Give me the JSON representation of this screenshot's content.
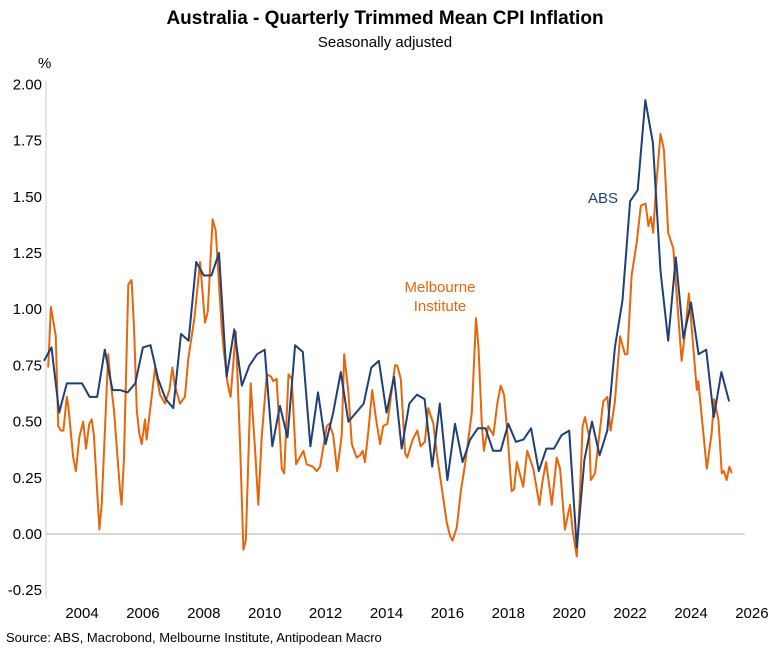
{
  "chart_data": {
    "type": "line",
    "title": "Australia - Quarterly Trimmed Mean CPI Inflation",
    "subtitle": "Seasonally adjusted",
    "ylabel": "%",
    "xlabel": "",
    "source": "Source: ABS, Macrobond, Melbourne Institute, Antipodean Macro",
    "xlim": [
      2002.9,
      2026.2
    ],
    "ylim": [
      -0.25,
      2.0
    ],
    "x_ticks": [
      "2004",
      "2006",
      "2008",
      "2010",
      "2012",
      "2014",
      "2016",
      "2018",
      "2020",
      "2022",
      "2024",
      "2026"
    ],
    "y_ticks": [
      "2.00",
      "1.75",
      "1.50",
      "1.25",
      "1.00",
      "0.75",
      "0.50",
      "0.25",
      "0.00",
      "-0.25"
    ],
    "grid": false,
    "zero_line": true,
    "series": [
      {
        "name": "ABS",
        "color": "#1f3f77",
        "frequency": "quarterly",
        "start": "2002 Q4",
        "values": [
          0.77,
          0.83,
          0.54,
          0.67,
          0.67,
          0.67,
          0.61,
          0.61,
          0.82,
          0.64,
          0.64,
          0.63,
          0.67,
          0.83,
          0.84,
          0.69,
          0.6,
          0.56,
          0.89,
          0.86,
          1.21,
          1.15,
          1.15,
          1.25,
          0.7,
          0.91,
          0.66,
          0.75,
          0.8,
          0.82,
          0.39,
          0.57,
          0.43,
          0.84,
          0.81,
          0.39,
          0.63,
          0.4,
          0.54,
          0.72,
          0.5,
          0.54,
          0.58,
          0.74,
          0.77,
          0.54,
          0.7,
          0.38,
          0.58,
          0.62,
          0.6,
          0.3,
          0.58,
          0.24,
          0.49,
          0.32,
          0.42,
          0.47,
          0.47,
          0.37,
          0.37,
          0.49,
          0.41,
          0.42,
          0.47,
          0.28,
          0.38,
          0.38,
          0.44,
          0.46,
          -0.06,
          0.33,
          0.5,
          0.35,
          0.46,
          0.83,
          1.04,
          1.48,
          1.53,
          1.93,
          1.74,
          1.17,
          0.86,
          1.23,
          0.87,
          1.03,
          0.8,
          0.82,
          0.52,
          0.72,
          0.59
        ]
      },
      {
        "name": "Melbourne\nInstitute",
        "label_lines": [
          "Melbourne",
          "Institute"
        ],
        "color": "#e8650a",
        "frequency": "monthly",
        "points": [
          [
            2002.89,
            0.74
          ],
          [
            2002.98,
            1.01
          ],
          [
            2003.14,
            0.88
          ],
          [
            2003.22,
            0.48
          ],
          [
            2003.31,
            0.46
          ],
          [
            2003.39,
            0.46
          ],
          [
            2003.5,
            0.61
          ],
          [
            2003.55,
            0.57
          ],
          [
            2003.71,
            0.34
          ],
          [
            2003.8,
            0.28
          ],
          [
            2003.91,
            0.43
          ],
          [
            2004.04,
            0.5
          ],
          [
            2004.13,
            0.38
          ],
          [
            2004.24,
            0.49
          ],
          [
            2004.32,
            0.51
          ],
          [
            2004.39,
            0.44
          ],
          [
            2004.57,
            0.02
          ],
          [
            2004.65,
            0.14
          ],
          [
            2004.86,
            0.8
          ],
          [
            2004.94,
            0.68
          ],
          [
            2005.05,
            0.55
          ],
          [
            2005.25,
            0.19
          ],
          [
            2005.3,
            0.13
          ],
          [
            2005.38,
            0.34
          ],
          [
            2005.52,
            1.11
          ],
          [
            2005.63,
            1.13
          ],
          [
            2005.71,
            0.91
          ],
          [
            2005.8,
            0.55
          ],
          [
            2005.88,
            0.45
          ],
          [
            2005.96,
            0.4
          ],
          [
            2006.07,
            0.51
          ],
          [
            2006.12,
            0.42
          ],
          [
            2006.4,
            0.74
          ],
          [
            2006.56,
            0.62
          ],
          [
            2006.73,
            0.58
          ],
          [
            2006.87,
            0.64
          ],
          [
            2006.97,
            0.74
          ],
          [
            2007.05,
            0.66
          ],
          [
            2007.22,
            0.58
          ],
          [
            2007.38,
            0.61
          ],
          [
            2007.49,
            0.78
          ],
          [
            2007.69,
            0.96
          ],
          [
            2007.88,
            1.21
          ],
          [
            2008.04,
            0.94
          ],
          [
            2008.13,
            0.99
          ],
          [
            2008.29,
            1.4
          ],
          [
            2008.39,
            1.35
          ],
          [
            2008.59,
            0.91
          ],
          [
            2008.66,
            0.81
          ],
          [
            2008.78,
            0.67
          ],
          [
            2008.88,
            0.61
          ],
          [
            2009.05,
            0.9
          ],
          [
            2009.19,
            0.41
          ],
          [
            2009.3,
            -0.07
          ],
          [
            2009.38,
            -0.03
          ],
          [
            2009.54,
            0.67
          ],
          [
            2009.68,
            0.38
          ],
          [
            2009.79,
            0.13
          ],
          [
            2009.9,
            0.43
          ],
          [
            2010.07,
            0.71
          ],
          [
            2010.21,
            0.7
          ],
          [
            2010.28,
            0.68
          ],
          [
            2010.39,
            0.69
          ],
          [
            2010.56,
            0.29
          ],
          [
            2010.64,
            0.27
          ],
          [
            2010.78,
            0.71
          ],
          [
            2010.89,
            0.69
          ],
          [
            2011.03,
            0.31
          ],
          [
            2011.27,
            0.37
          ],
          [
            2011.38,
            0.31
          ],
          [
            2011.58,
            0.3
          ],
          [
            2011.71,
            0.28
          ],
          [
            2011.82,
            0.3
          ],
          [
            2012.04,
            0.48
          ],
          [
            2012.12,
            0.49
          ],
          [
            2012.25,
            0.44
          ],
          [
            2012.38,
            0.28
          ],
          [
            2012.53,
            0.44
          ],
          [
            2012.61,
            0.8
          ],
          [
            2012.75,
            0.63
          ],
          [
            2012.86,
            0.4
          ],
          [
            2013.02,
            0.34
          ],
          [
            2013.13,
            0.35
          ],
          [
            2013.22,
            0.37
          ],
          [
            2013.29,
            0.32
          ],
          [
            2013.4,
            0.45
          ],
          [
            2013.53,
            0.64
          ],
          [
            2013.66,
            0.51
          ],
          [
            2013.79,
            0.4
          ],
          [
            2013.89,
            0.48
          ],
          [
            2014.03,
            0.49
          ],
          [
            2014.28,
            0.75
          ],
          [
            2014.35,
            0.75
          ],
          [
            2014.47,
            0.69
          ],
          [
            2014.61,
            0.36
          ],
          [
            2014.68,
            0.34
          ],
          [
            2014.86,
            0.42
          ],
          [
            2015.01,
            0.46
          ],
          [
            2015.12,
            0.39
          ],
          [
            2015.26,
            0.41
          ],
          [
            2015.37,
            0.56
          ],
          [
            2015.54,
            0.49
          ],
          [
            2015.65,
            0.36
          ],
          [
            2015.81,
            0.21
          ],
          [
            2015.98,
            0.05
          ],
          [
            2016.09,
            -0.01
          ],
          [
            2016.17,
            -0.03
          ],
          [
            2016.31,
            0.03
          ],
          [
            2016.44,
            0.19
          ],
          [
            2016.58,
            0.31
          ],
          [
            2016.8,
            0.54
          ],
          [
            2016.94,
            0.96
          ],
          [
            2017.02,
            0.83
          ],
          [
            2017.13,
            0.49
          ],
          [
            2017.2,
            0.37
          ],
          [
            2017.34,
            0.48
          ],
          [
            2017.51,
            0.44
          ],
          [
            2017.64,
            0.58
          ],
          [
            2017.75,
            0.66
          ],
          [
            2017.86,
            0.62
          ],
          [
            2017.97,
            0.45
          ],
          [
            2018.11,
            0.19
          ],
          [
            2018.19,
            0.2
          ],
          [
            2018.28,
            0.32
          ],
          [
            2018.49,
            0.21
          ],
          [
            2018.62,
            0.37
          ],
          [
            2018.82,
            0.29
          ],
          [
            2019.02,
            0.13
          ],
          [
            2019.13,
            0.24
          ],
          [
            2019.24,
            0.32
          ],
          [
            2019.43,
            0.13
          ],
          [
            2019.59,
            0.34
          ],
          [
            2019.7,
            0.29
          ],
          [
            2019.86,
            0.02
          ],
          [
            2020.03,
            0.13
          ],
          [
            2020.11,
            0.02
          ],
          [
            2020.25,
            -0.1
          ],
          [
            2020.35,
            0.17
          ],
          [
            2020.44,
            0.48
          ],
          [
            2020.52,
            0.52
          ],
          [
            2020.66,
            0.43
          ],
          [
            2020.71,
            0.24
          ],
          [
            2020.85,
            0.27
          ],
          [
            2020.92,
            0.36
          ],
          [
            2021.12,
            0.59
          ],
          [
            2021.25,
            0.61
          ],
          [
            2021.36,
            0.46
          ],
          [
            2021.5,
            0.59
          ],
          [
            2021.67,
            0.88
          ],
          [
            2021.83,
            0.8
          ],
          [
            2021.91,
            0.8
          ],
          [
            2022.05,
            1.15
          ],
          [
            2022.22,
            1.3
          ],
          [
            2022.35,
            1.46
          ],
          [
            2022.51,
            1.47
          ],
          [
            2022.6,
            1.37
          ],
          [
            2022.68,
            1.41
          ],
          [
            2022.76,
            1.34
          ],
          [
            2022.85,
            1.54
          ],
          [
            2023.0,
            1.78
          ],
          [
            2023.11,
            1.71
          ],
          [
            2023.25,
            1.34
          ],
          [
            2023.42,
            1.27
          ],
          [
            2023.69,
            0.77
          ],
          [
            2023.8,
            0.89
          ],
          [
            2023.93,
            1.07
          ],
          [
            2024.19,
            0.64
          ],
          [
            2024.24,
            0.68
          ],
          [
            2024.52,
            0.29
          ],
          [
            2024.68,
            0.45
          ],
          [
            2024.76,
            0.6
          ],
          [
            2024.9,
            0.51
          ],
          [
            2025.01,
            0.27
          ],
          [
            2025.08,
            0.28
          ],
          [
            2025.17,
            0.24
          ],
          [
            2025.26,
            0.3
          ],
          [
            2025.34,
            0.27
          ]
        ]
      }
    ]
  }
}
